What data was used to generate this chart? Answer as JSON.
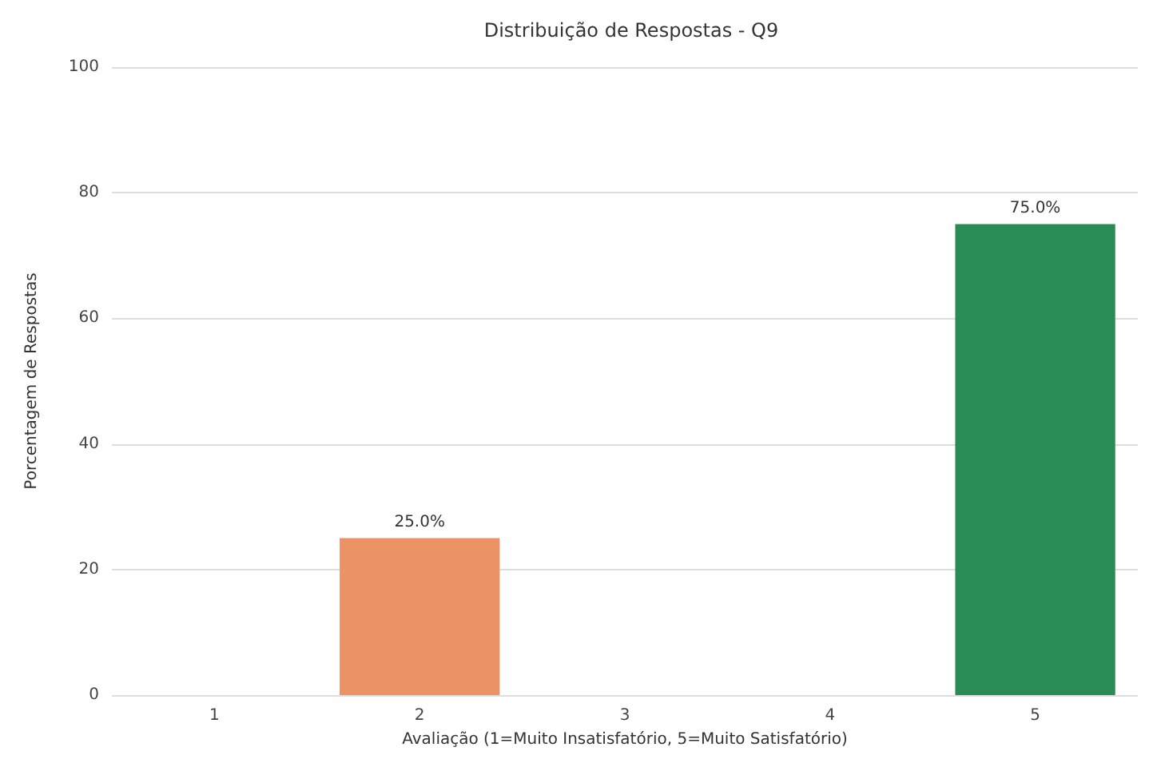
{
  "chart_data": {
    "type": "bar",
    "title": "Distribuição de Respostas - Q9",
    "xlabel": "Avaliação (1=Muito Insatisfatório, 5=Muito Satisfatório)",
    "ylabel": "Porcentagem de Respostas",
    "categories": [
      "1",
      "2",
      "3",
      "4",
      "5"
    ],
    "values": [
      0,
      25,
      0,
      0,
      75
    ],
    "value_labels": [
      null,
      "25.0%",
      null,
      null,
      "75.0%"
    ],
    "colors": [
      "#d7191c",
      "#ec9366",
      "#fee08b",
      "#a6d96a",
      "#2a8c55"
    ],
    "ylim": [
      0,
      100
    ],
    "yticks": [
      0,
      20,
      40,
      60,
      80,
      100
    ],
    "grid": "y"
  }
}
